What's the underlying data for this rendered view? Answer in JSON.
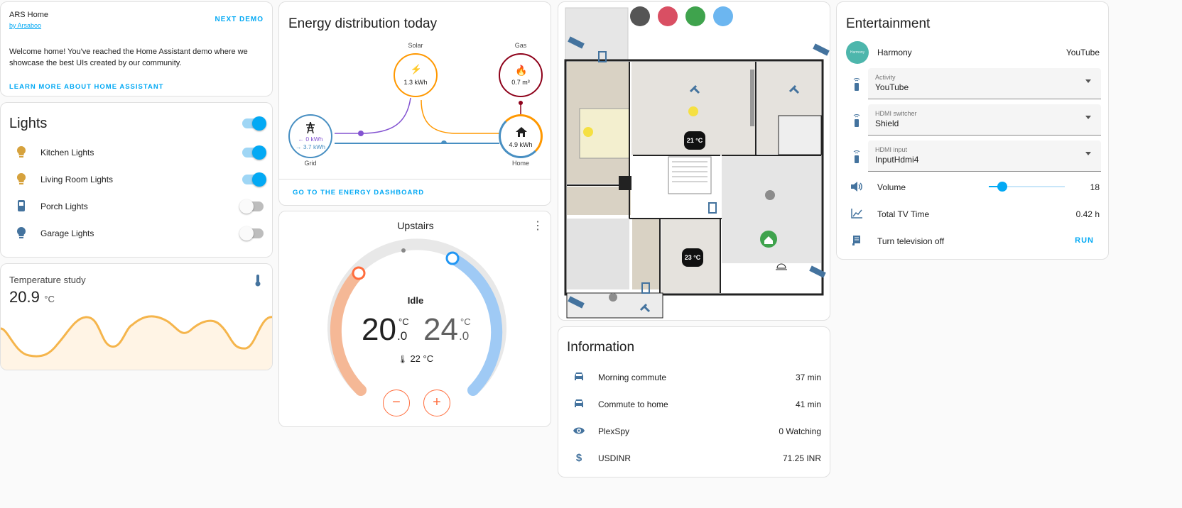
{
  "welcome": {
    "title": "ARS Home",
    "author": "by Arsaboo",
    "next_demo": "NEXT DEMO",
    "message": "Welcome home! You've reached the Home Assistant demo where we showcase the best UIs created by our community.",
    "learn_more": "LEARN MORE ABOUT HOME ASSISTANT"
  },
  "lights": {
    "title": "Lights",
    "items": [
      {
        "label": "Kitchen Lights",
        "icon": "bulb-icon",
        "on": true
      },
      {
        "label": "Living Room Lights",
        "icon": "bulb-icon",
        "on": true
      },
      {
        "label": "Porch Lights",
        "icon": "outdoor-lamp-icon",
        "on": false
      },
      {
        "label": "Garage Lights",
        "icon": "bulb-icon",
        "on": false
      }
    ]
  },
  "temperature": {
    "title": "Temperature study",
    "value": "20.9",
    "unit": "°C",
    "icon": "thermometer-icon"
  },
  "energy": {
    "title": "Energy distribution today",
    "solar": {
      "label": "Solar",
      "value": "1.3 kWh"
    },
    "gas": {
      "label": "Gas",
      "value": "0.7 m³"
    },
    "grid": {
      "label": "Grid",
      "in": "← 0 kWh",
      "out": "→ 3.7 kWh"
    },
    "home": {
      "label": "Home",
      "value": "4.9 kWh"
    },
    "dashboard_link": "GO TO THE ENERGY DASHBOARD"
  },
  "thermostat": {
    "title": "Upstairs",
    "state": "Idle",
    "low": "20",
    "low_dec": ".0",
    "high": "24",
    "high_dec": ".0",
    "unit": "°C",
    "current": "22 °C",
    "minus": "−",
    "plus": "+"
  },
  "floorplan": {
    "temp1": "21 °C",
    "temp2": "23 °C"
  },
  "information": {
    "title": "Information",
    "rows": [
      {
        "label": "Morning commute",
        "value": "37 min",
        "icon": "car-icon"
      },
      {
        "label": "Commute to home",
        "value": "41 min",
        "icon": "car-icon"
      },
      {
        "label": "PlexSpy",
        "value": "0 Watching",
        "icon": "eye-icon"
      },
      {
        "label": "USDINR",
        "value": "71.25 INR",
        "icon": "dollar-icon"
      }
    ]
  },
  "entertainment": {
    "title": "Entertainment",
    "harmony": {
      "label": "Harmony",
      "value": "YouTube",
      "avatar_text": "Harmony"
    },
    "selects": [
      {
        "label": "Activity",
        "value": "YouTube"
      },
      {
        "label": "HDMI switcher",
        "value": "Shield"
      },
      {
        "label": "HDMI input",
        "value": "InputHdmi4"
      }
    ],
    "volume": {
      "label": "Volume",
      "value": "18",
      "level": 0.18
    },
    "tv_time": {
      "label": "Total TV Time",
      "value": "0.42 h"
    },
    "tv_off": {
      "label": "Turn television off",
      "action": "RUN"
    }
  },
  "colors": {
    "accent": "#03a9f4",
    "solar": "#ff9800",
    "gas": "#8e021b",
    "grid": "#488fc2",
    "grid_return": "#8353d1",
    "heat": "#ff8100",
    "cool": "#2196f3"
  }
}
